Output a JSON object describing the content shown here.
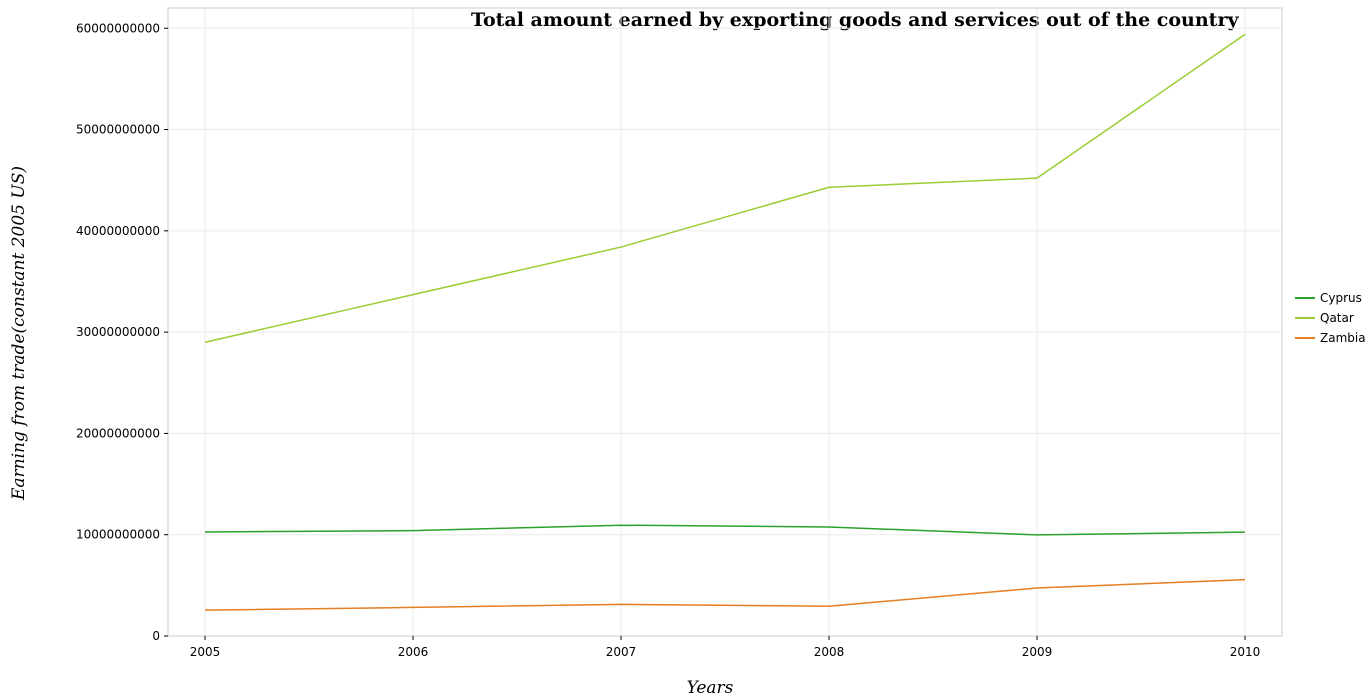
{
  "chart_data": {
    "type": "line",
    "title": "Total amount earned by exporting goods and services out of the country",
    "xlabel": "Years",
    "ylabel": "Earning from trade(constant 2005 US)",
    "categories": [
      "2005",
      "2006",
      "2007",
      "2008",
      "2009",
      "2010"
    ],
    "ylim": [
      0,
      62000000000
    ],
    "yticks": [
      0,
      10000000000,
      20000000000,
      30000000000,
      40000000000,
      50000000000,
      60000000000
    ],
    "ytick_labels": [
      "0",
      "10000000000",
      "20000000000",
      "30000000000",
      "40000000000",
      "50000000000",
      "60000000000"
    ],
    "grid": true,
    "legend_position": "right",
    "series": [
      {
        "name": "Cyprus",
        "color": "#2ca02c",
        "values": [
          10270000000,
          10400000000,
          10940000000,
          10760000000,
          9980000000,
          10250000000
        ]
      },
      {
        "name": "Qatar",
        "color": "#9acd32",
        "values": [
          29000000000,
          33700000000,
          38400000000,
          44300000000,
          45200000000,
          59400000000
        ]
      },
      {
        "name": "Zambia",
        "color": "#e67e22",
        "values": [
          2550000000,
          2820000000,
          3120000000,
          2940000000,
          4740000000,
          5560000000
        ]
      }
    ]
  }
}
